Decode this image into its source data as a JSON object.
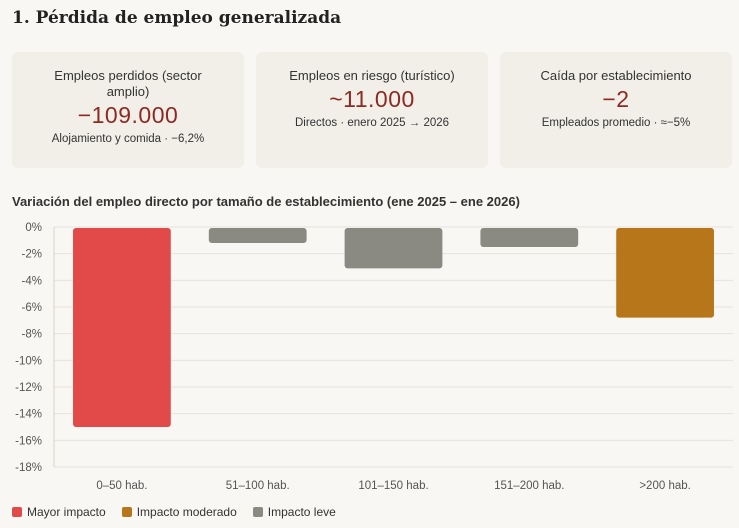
{
  "header": {
    "title": "1. Pérdida de empleo generalizada"
  },
  "cards": [
    {
      "label": "Empleos perdidos (sector amplio)",
      "value": "−109.000",
      "sub": "Alojamiento y comida · −6,2%"
    },
    {
      "label": "Empleos en riesgo (turístico)",
      "value": "~11.000",
      "sub": "Directos · enero 2025 → 2026"
    },
    {
      "label": "Caída por establecimiento",
      "value": "−2",
      "sub": "Empleados promedio · ≈−5%"
    }
  ],
  "legend": [
    {
      "label": "Mayor impacto",
      "color": "#e24a4a"
    },
    {
      "label": "Impacto moderado",
      "color": "#b8761a"
    },
    {
      "label": "Impacto leve",
      "color": "#8a8a82"
    }
  ],
  "chart_data": {
    "type": "bar",
    "title": "Variación del empleo directo por tamaño de establecimiento (ene 2025 – ene 2026)",
    "categories": [
      "0–50 hab.",
      "51–100 hab.",
      "101–150 hab.",
      "151–200 hab.",
      ">200 hab."
    ],
    "values": [
      -15,
      -1.2,
      -3.1,
      -1.5,
      -6.8
    ],
    "impact": [
      "Mayor impacto",
      "Impacto leve",
      "Impacto leve",
      "Impacto leve",
      "Impacto moderado"
    ],
    "colors": [
      "#e24a4a",
      "#8a8a82",
      "#8a8a82",
      "#8a8a82",
      "#b8761a"
    ],
    "ylim": [
      -18,
      0
    ],
    "yticks": [
      0,
      -2,
      -4,
      -6,
      -8,
      -10,
      -12,
      -14,
      -16,
      -18
    ],
    "ytick_labels": [
      "0%",
      "-2%",
      "-4%",
      "-6%",
      "-8%",
      "-10%",
      "-12%",
      "-14%",
      "-16%",
      "-18%"
    ],
    "xlabel": "",
    "ylabel": "",
    "grid": true
  }
}
